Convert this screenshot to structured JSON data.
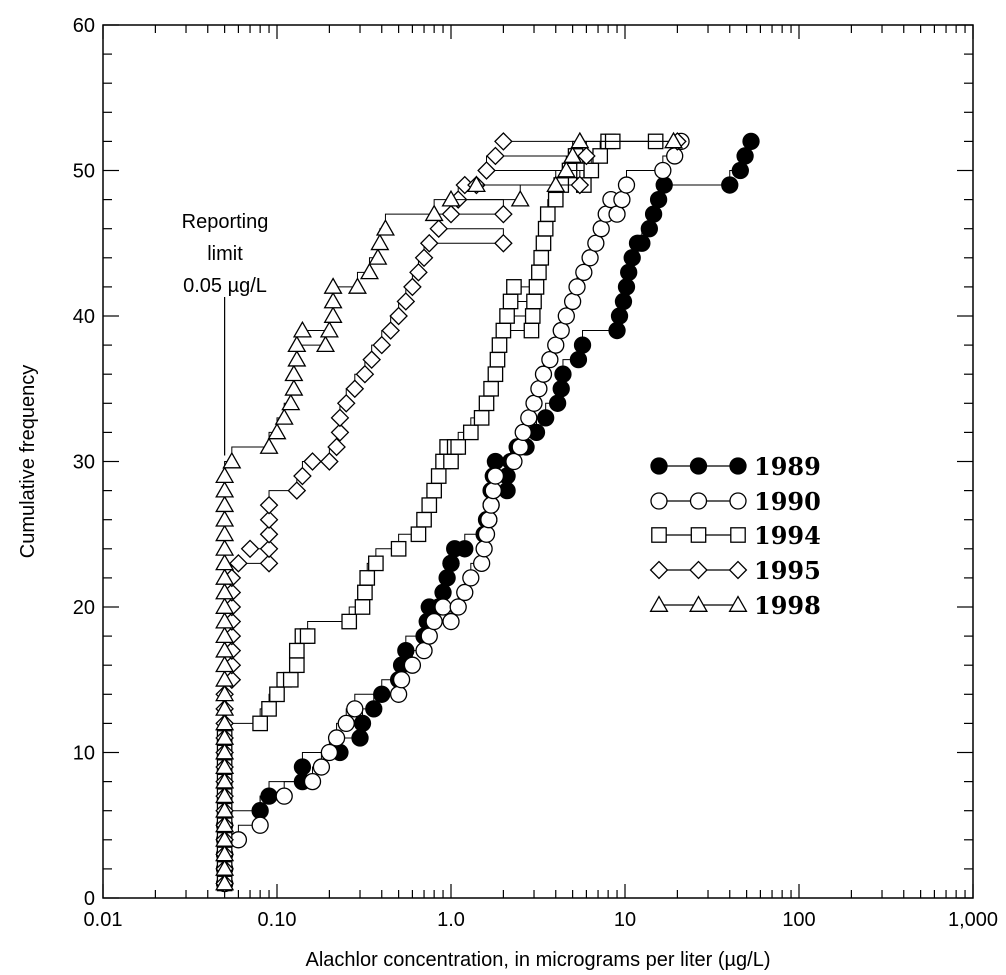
{
  "chart_data": {
    "type": "scatter",
    "xlabel": "Alachlor concentration, in micrograms per liter (µg/L)",
    "ylabel": "Cumulative frequency",
    "x_scale": "log",
    "xlim": [
      0.01,
      1000
    ],
    "ylim": [
      0,
      60
    ],
    "x_tick_labels": [
      "0.01",
      "0.10",
      "1.0",
      "10",
      "100",
      "1,000"
    ],
    "x_tick_values": [
      0.01,
      0.1,
      1,
      10,
      100,
      1000
    ],
    "y_tick_labels": [
      "0",
      "10",
      "20",
      "30",
      "40",
      "50",
      "60"
    ],
    "y_tick_values": [
      0,
      10,
      20,
      30,
      40,
      50,
      60
    ],
    "grid": false,
    "legend_position": "right",
    "annotation": {
      "lines": [
        "Reporting",
        "limit",
        "0.05 µg/L"
      ],
      "x": 0.05,
      "y": 30
    },
    "series": [
      {
        "name": "1989",
        "marker": "circle-filled",
        "x": [
          0.05,
          0.05,
          0.05,
          0.05,
          0.05,
          0.08,
          0.09,
          0.14,
          0.14,
          0.23,
          0.3,
          0.31,
          0.36,
          0.4,
          0.5,
          0.52,
          0.55,
          0.7,
          0.73,
          0.75,
          0.85,
          0.9,
          0.95,
          1.0,
          1.0,
          1.05,
          1.2,
          1.55,
          1.6,
          1.65,
          1.7,
          1.7,
          1.75,
          1.8,
          2.1,
          2.1,
          2.2,
          2.4,
          2.7,
          3.1,
          3.5,
          4.1,
          4.3,
          4.4,
          5.4,
          5.7,
          9.0,
          9.3,
          9.8,
          10.2,
          10.5,
          11.0,
          11.8,
          12.5,
          13.8,
          14.6,
          15.6,
          16.8,
          40,
          46,
          49,
          53
        ],
        "y": [
          1,
          2,
          3,
          4,
          5,
          6,
          7,
          8,
          9,
          10,
          11,
          12,
          13,
          14,
          15,
          16,
          17,
          18,
          19,
          20,
          20,
          21,
          22,
          23,
          23,
          24,
          24,
          25,
          26,
          26,
          27,
          28,
          29,
          30,
          28,
          29,
          30,
          31,
          31,
          32,
          33,
          34,
          35,
          36,
          37,
          38,
          39,
          40,
          41,
          42,
          43,
          44,
          45,
          45,
          46,
          47,
          48,
          49,
          49,
          50,
          51,
          52
        ]
      },
      {
        "name": "1990",
        "marker": "circle-open",
        "x": [
          0.05,
          0.05,
          0.05,
          0.06,
          0.08,
          0.11,
          0.16,
          0.18,
          0.2,
          0.22,
          0.25,
          0.28,
          0.5,
          0.52,
          0.6,
          0.7,
          0.75,
          0.8,
          0.9,
          1.0,
          1.1,
          1.2,
          1.3,
          1.5,
          1.55,
          1.6,
          1.65,
          1.7,
          1.75,
          1.8,
          2.3,
          2.5,
          2.6,
          2.8,
          3.0,
          3.2,
          3.4,
          3.7,
          4.0,
          4.3,
          4.6,
          5.0,
          5.3,
          5.8,
          6.3,
          6.8,
          7.3,
          7.8,
          8.3,
          9.0,
          9.6,
          10.2,
          16.5,
          19.3,
          21
        ],
        "y": [
          1,
          2,
          3,
          4,
          5,
          7,
          8,
          9,
          10,
          11,
          12,
          13,
          14,
          15,
          16,
          17,
          18,
          19,
          20,
          19,
          20,
          21,
          22,
          23,
          24,
          25,
          26,
          27,
          28,
          29,
          30,
          31,
          32,
          33,
          34,
          35,
          36,
          37,
          38,
          39,
          40,
          41,
          42,
          43,
          44,
          45,
          46,
          47,
          48,
          47,
          48,
          49,
          50,
          51,
          52
        ]
      },
      {
        "name": "1994",
        "marker": "square-open",
        "x": [
          0.05,
          0.05,
          0.05,
          0.05,
          0.05,
          0.05,
          0.05,
          0.05,
          0.05,
          0.05,
          0.05,
          0.08,
          0.09,
          0.1,
          0.11,
          0.12,
          0.13,
          0.13,
          0.14,
          0.15,
          0.26,
          0.31,
          0.32,
          0.33,
          0.37,
          0.5,
          0.65,
          0.7,
          0.75,
          0.8,
          0.85,
          0.9,
          0.95,
          1.0,
          1.05,
          1.1,
          1.3,
          1.5,
          1.6,
          1.7,
          1.8,
          1.85,
          1.9,
          2.0,
          2.1,
          2.2,
          2.3,
          2.9,
          2.95,
          3.0,
          3.1,
          3.2,
          3.3,
          3.4,
          3.5,
          3.6,
          4.0,
          4.3,
          4.8,
          5.2,
          5.8,
          6.4,
          7.2,
          8.0,
          8.5,
          15
        ],
        "y": [
          1,
          2,
          3,
          4,
          5,
          6,
          7,
          8,
          9,
          10,
          11,
          12,
          13,
          14,
          15,
          15,
          16,
          17,
          18,
          18,
          19,
          20,
          21,
          22,
          23,
          24,
          25,
          26,
          27,
          28,
          29,
          30,
          31,
          30,
          31,
          31,
          32,
          33,
          34,
          35,
          36,
          37,
          38,
          39,
          40,
          41,
          42,
          39,
          40,
          41,
          42,
          43,
          44,
          45,
          46,
          47,
          48,
          49,
          50,
          51,
          49,
          50,
          51,
          52,
          52,
          52
        ]
      },
      {
        "name": "1995",
        "marker": "diamond-open",
        "x": [
          0.05,
          0.05,
          0.05,
          0.05,
          0.05,
          0.05,
          0.05,
          0.05,
          0.05,
          0.05,
          0.05,
          0.05,
          0.05,
          0.05,
          0.055,
          0.055,
          0.055,
          0.055,
          0.055,
          0.055,
          0.055,
          0.055,
          0.06,
          0.07,
          0.09,
          0.09,
          0.09,
          0.09,
          0.09,
          0.13,
          0.14,
          0.16,
          0.2,
          0.22,
          0.23,
          0.23,
          0.25,
          0.28,
          0.32,
          0.35,
          0.4,
          0.45,
          0.5,
          0.55,
          0.6,
          0.65,
          0.7,
          0.75,
          0.85,
          1.0,
          1.1,
          1.2,
          1.4,
          1.6,
          1.8,
          2.0,
          2.0,
          2.0,
          5.5,
          6.0,
          20
        ],
        "y": [
          1,
          2,
          3,
          4,
          5,
          6,
          7,
          8,
          9,
          10,
          11,
          12,
          13,
          14,
          15,
          16,
          17,
          18,
          19,
          20,
          21,
          22,
          23,
          24,
          23,
          24,
          25,
          26,
          27,
          28,
          29,
          30,
          30,
          31,
          32,
          33,
          34,
          35,
          36,
          37,
          38,
          39,
          40,
          41,
          42,
          43,
          44,
          45,
          46,
          47,
          48,
          49,
          49,
          50,
          51,
          52,
          45,
          47,
          49,
          51,
          52
        ]
      },
      {
        "name": "1998",
        "marker": "triangle-open",
        "x": [
          0.05,
          0.05,
          0.05,
          0.05,
          0.05,
          0.05,
          0.05,
          0.05,
          0.05,
          0.05,
          0.05,
          0.05,
          0.05,
          0.05,
          0.05,
          0.05,
          0.05,
          0.05,
          0.05,
          0.05,
          0.05,
          0.05,
          0.05,
          0.05,
          0.05,
          0.05,
          0.05,
          0.05,
          0.05,
          0.055,
          0.09,
          0.1,
          0.11,
          0.12,
          0.125,
          0.125,
          0.13,
          0.13,
          0.14,
          0.19,
          0.2,
          0.21,
          0.21,
          0.21,
          0.29,
          0.34,
          0.38,
          0.39,
          0.42,
          0.8,
          1.0,
          1.4,
          2.5,
          4.0,
          4.6,
          5.0,
          5.5,
          19
        ],
        "y": [
          1,
          2,
          3,
          4,
          5,
          6,
          7,
          8,
          9,
          10,
          11,
          12,
          13,
          14,
          15,
          16,
          17,
          18,
          19,
          20,
          21,
          22,
          23,
          24,
          25,
          26,
          27,
          28,
          29,
          30,
          31,
          32,
          33,
          34,
          35,
          36,
          37,
          38,
          39,
          38,
          39,
          40,
          41,
          42,
          42,
          43,
          44,
          45,
          46,
          47,
          48,
          49,
          48,
          49,
          50,
          51,
          52,
          52
        ]
      }
    ]
  }
}
